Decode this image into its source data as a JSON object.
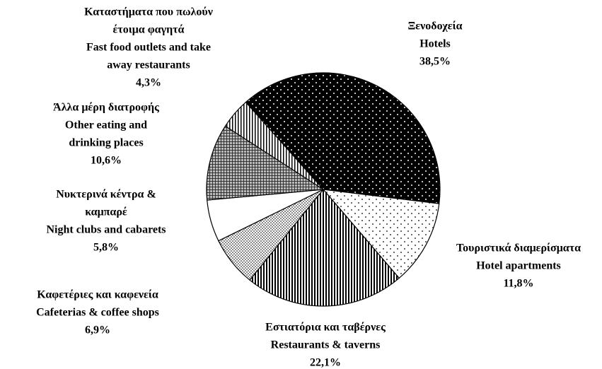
{
  "chart_data": {
    "type": "pie",
    "categories": [
      [
        "Ξενοδοχεία",
        "Hotels"
      ],
      [
        "Τουριστικά διαμερίσματα",
        "Hotel apartments"
      ],
      [
        "Εστιατόρια και ταβέρνες",
        "Restaurants & taverns"
      ],
      [
        "Καφετέριες και καφενεία",
        "Cafeterias & coffee shops"
      ],
      [
        "Νυκτερινά κέντρα &",
        "καμπαρέ",
        "Night clubs and cabarets"
      ],
      [
        "Άλλα μέρη διατροφής",
        "Other eating and",
        "drinking places"
      ],
      [
        "Καταστήματα που πωλούν",
        "έτοιμα φαγητά",
        "Fast food outlets and take",
        "away restaurants"
      ]
    ],
    "values": [
      38.5,
      11.8,
      22.1,
      6.9,
      5.8,
      10.6,
      4.3
    ],
    "value_labels": [
      "38,5%",
      "11,8%",
      "22,1%",
      "6,9%",
      "5,8%",
      "10,6%",
      "4,3%"
    ]
  }
}
